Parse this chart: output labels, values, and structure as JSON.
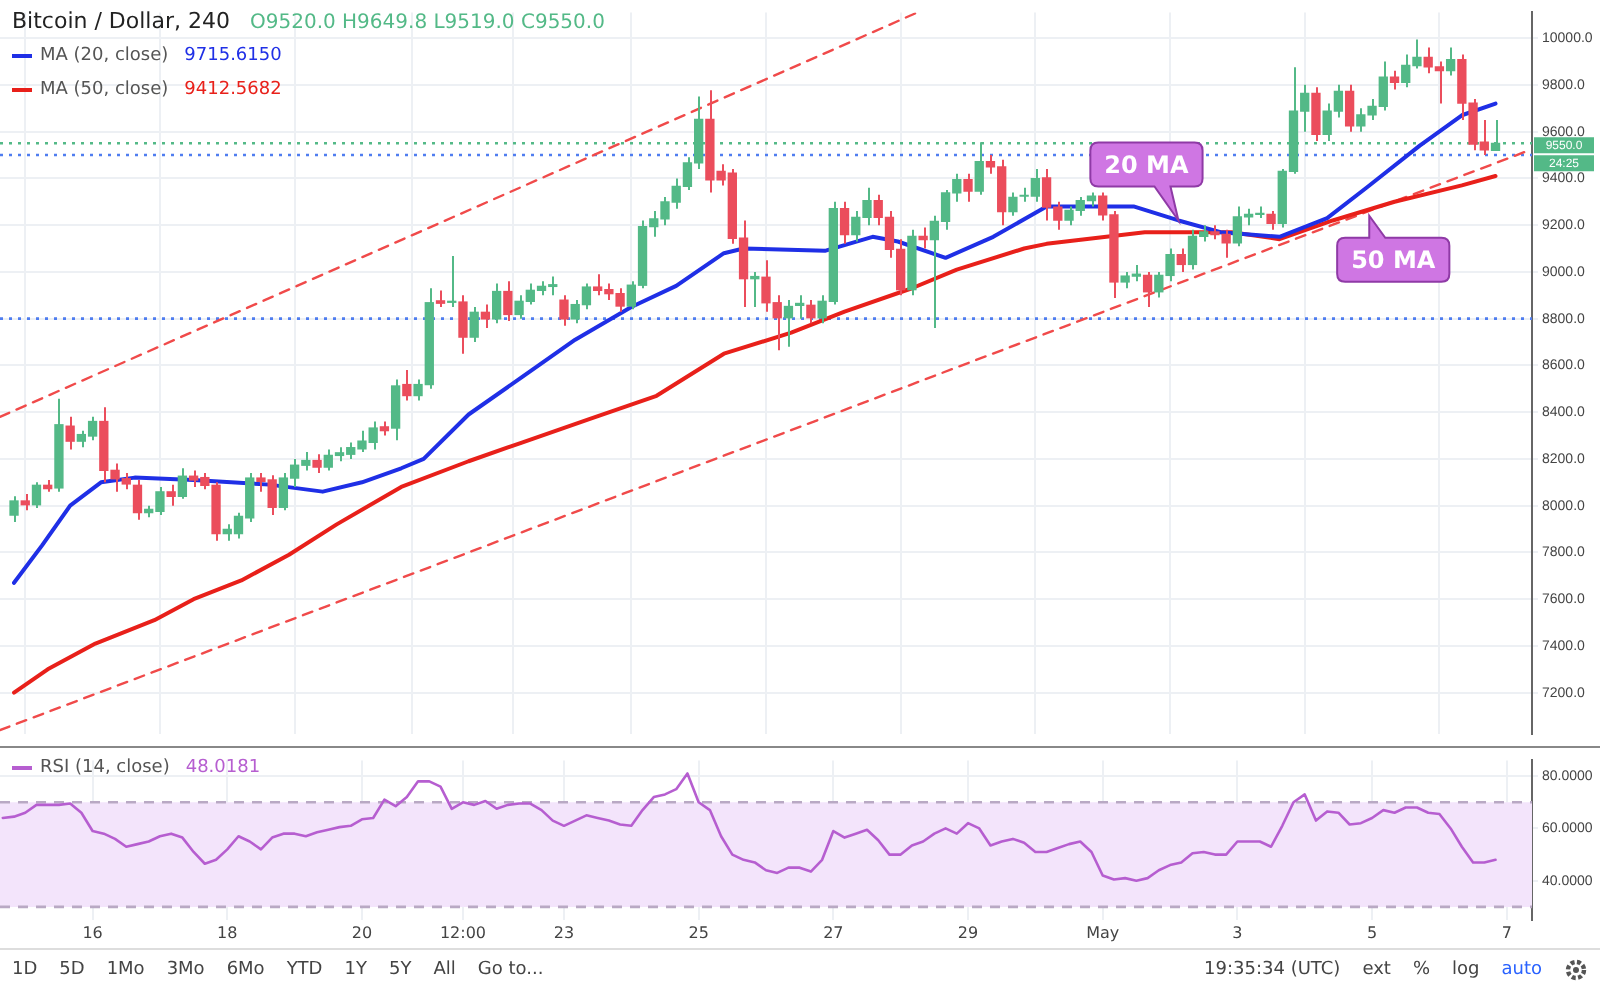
{
  "chart_data": [
    {
      "type": "candlestick",
      "title": "Bitcoin / Dollar, 240",
      "legend": "top left",
      "grid": true,
      "tick_labels": "y",
      "xlim": [
        "--04-14T15:00",
        "--05-07T09:00"
      ],
      "xticks": [
        {
          "value": "--04-16",
          "label": null
        },
        {
          "value": "--04-18",
          "label": null
        },
        {
          "value": "--04-20",
          "label": null
        },
        {
          "value": "--04-21T12:00",
          "label": null
        },
        {
          "value": "--04-23",
          "label": null
        },
        {
          "value": "--04-25",
          "label": null
        },
        {
          "value": "--04-27",
          "label": null
        },
        {
          "value": "--04-29",
          "label": null
        },
        {
          "value": "--05-01",
          "label": null
        },
        {
          "value": "--05-03",
          "label": null
        },
        {
          "value": "--05-05",
          "label": null
        },
        {
          "value": "--05-07",
          "label": null
        }
      ],
      "ylim": [
        7025,
        10110
      ],
      "yticks": [
        {
          "value": 7200,
          "label": "7200.0"
        },
        {
          "value": 7400,
          "label": "7400.0"
        },
        {
          "value": 7600,
          "label": "7600.0"
        },
        {
          "value": 7800,
          "label": "7800.0"
        },
        {
          "value": 8000,
          "label": "8000.0"
        },
        {
          "value": 8200,
          "label": "8200.0"
        },
        {
          "value": 8400,
          "label": "8400.0"
        },
        {
          "value": 8600,
          "label": "8600.0"
        },
        {
          "value": 8800,
          "label": "8800.0"
        },
        {
          "value": 9000,
          "label": "9000.0"
        },
        {
          "value": 9200,
          "label": "9200.0"
        },
        {
          "value": 9400,
          "label": "9400.0"
        },
        {
          "value": 9600,
          "label": "9600.0"
        },
        {
          "value": 9800,
          "label": "9800.0"
        },
        {
          "value": 10000,
          "label": "10000.0"
        }
      ],
      "x": [
        "--04-14T20:00",
        "--04-15T00:00",
        "--04-15T04:00",
        "--04-15T08:00",
        "--04-15T12:00",
        "--04-15T16:00",
        "--04-15T20:00",
        "--04-16T00:00",
        "--04-16T04:00",
        "--04-16T08:00",
        "--04-16T12:00",
        "--04-16T16:00",
        "--04-16T20:00",
        "--04-17T00:00",
        "--04-17T04:00",
        "--04-17T08:00",
        "--04-17T12:00",
        "--04-17T16:00",
        "--04-17T20:00",
        "--04-18T00:00",
        "--04-18T04:00",
        "--04-18T08:00",
        "--04-18T12:00",
        "--04-18T16:00",
        "--04-18T20:00",
        "--04-19T00:00",
        "--04-19T04:00",
        "--04-19T08:00",
        "--04-19T12:00",
        "--04-19T16:00",
        "--04-19T20:00",
        "--04-20T00:00",
        "--04-20T04:00",
        "--04-20T08:00",
        "--04-20T12:00",
        "--04-20T16:00",
        "--04-20T20:00",
        "--04-21T00:00",
        "--04-21T04:00",
        "--04-21T08:00",
        "--04-21T12:00",
        "--04-21T16:00",
        "--04-21T20:00",
        "--04-22T00:00",
        "--04-22T04:00",
        "--04-22T08:00",
        "--04-22T12:00",
        "--04-22T16:00",
        "--04-22T20:00",
        "--04-23T00:00",
        "--04-23T04:00",
        "--04-23T08:00",
        "--04-23T12:00",
        "--04-23T16:00",
        "--04-23T20:00",
        "--04-24T00:00",
        "--04-24T04:00",
        "--04-24T08:00",
        "--04-24T12:00",
        "--04-24T16:00",
        "--04-24T20:00",
        "--04-25T00:00",
        "--04-25T04:00",
        "--04-25T08:00",
        "--04-25T12:00",
        "--04-25T16:00",
        "--04-25T20:00",
        "--04-26T00:00",
        "--04-26T04:00",
        "--04-26T08:00",
        "--04-26T12:00",
        "--04-26T16:00",
        "--04-26T20:00",
        "--04-27T00:00",
        "--04-27T04:00",
        "--04-27T08:00",
        "--04-27T12:00",
        "--04-27T16:00",
        "--04-27T20:00",
        "--04-28T00:00",
        "--04-28T04:00",
        "--04-28T08:00",
        "--04-28T12:00",
        "--04-28T16:00",
        "--04-28T20:00",
        "--04-29T00:00",
        "--04-29T04:00",
        "--04-29T08:00",
        "--04-29T12:00",
        "--04-29T16:00",
        "--04-29T20:00",
        "--04-30T00:00",
        "--04-30T04:00",
        "--04-30T08:00",
        "--04-30T12:00",
        "--04-30T16:00",
        "--04-30T20:00",
        "--05-01T00:00",
        "--05-01T04:00",
        "--05-01T08:00",
        "--05-01T12:00",
        "--05-01T16:00",
        "--05-01T20:00",
        "--05-02T00:00",
        "--05-02T04:00",
        "--05-02T08:00",
        "--05-02T12:00",
        "--05-02T16:00",
        "--05-02T20:00",
        "--05-03T00:00",
        "--05-03T04:00",
        "--05-03T08:00",
        "--05-03T12:00",
        "--05-03T16:00",
        "--05-03T20:00",
        "--05-04T00:00",
        "--05-04T04:00",
        "--05-04T08:00",
        "--05-04T12:00",
        "--05-04T16:00",
        "--05-04T20:00",
        "--05-05T00:00",
        "--05-05T04:00",
        "--05-05T08:00",
        "--05-05T12:00",
        "--05-05T16:00",
        "--05-05T20:00",
        "--05-06T00:00",
        "--05-06T04:00",
        "--05-06T08:00",
        "--05-06T12:00",
        "--05-06T16:00",
        "--05-06T20:00"
      ],
      "ohlc": [
        [
          7960,
          8040,
          7930,
          8020
        ],
        [
          8020,
          8050,
          7980,
          8004
        ],
        [
          8004,
          8100,
          7990,
          8087
        ],
        [
          8087,
          8110,
          8060,
          8073
        ],
        [
          8076,
          8457,
          8060,
          8346
        ],
        [
          8340,
          8380,
          8240,
          8276
        ],
        [
          8276,
          8320,
          8250,
          8304
        ],
        [
          8298,
          8380,
          8280,
          8360
        ],
        [
          8360,
          8421,
          8100,
          8151
        ],
        [
          8151,
          8180,
          8060,
          8115
        ],
        [
          8115,
          8140,
          8070,
          8093
        ],
        [
          8087,
          8110,
          7940,
          7970
        ],
        [
          7970,
          8000,
          7950,
          7984
        ],
        [
          7976,
          8080,
          7960,
          8059
        ],
        [
          8059,
          8090,
          8000,
          8040
        ],
        [
          8040,
          8160,
          8030,
          8126
        ],
        [
          8126,
          8150,
          8080,
          8110
        ],
        [
          8120,
          8140,
          8070,
          8087
        ],
        [
          8087,
          8100,
          7850,
          7881
        ],
        [
          7881,
          7920,
          7850,
          7898
        ],
        [
          7881,
          7970,
          7860,
          7954
        ],
        [
          7948,
          8140,
          7930,
          8118
        ],
        [
          8118,
          8140,
          8060,
          8104
        ],
        [
          8110,
          8130,
          7960,
          7993
        ],
        [
          7993,
          8140,
          7980,
          8118
        ],
        [
          8118,
          8200,
          8080,
          8173
        ],
        [
          8173,
          8230,
          8150,
          8193
        ],
        [
          8193,
          8220,
          8140,
          8165
        ],
        [
          8165,
          8240,
          8150,
          8215
        ],
        [
          8215,
          8250,
          8190,
          8226
        ],
        [
          8220,
          8270,
          8200,
          8248
        ],
        [
          8243,
          8320,
          8230,
          8276
        ],
        [
          8271,
          8360,
          8240,
          8332
        ],
        [
          8337,
          8360,
          8300,
          8321
        ],
        [
          8332,
          8540,
          8280,
          8512
        ],
        [
          8518,
          8580,
          8450,
          8471
        ],
        [
          8471,
          8540,
          8450,
          8518
        ],
        [
          8518,
          8930,
          8500,
          8868
        ],
        [
          8876,
          8920,
          8850,
          8866
        ],
        [
          8870,
          9068,
          8850,
          8874
        ],
        [
          8871,
          8900,
          8650,
          8721
        ],
        [
          8721,
          8850,
          8700,
          8827
        ],
        [
          8827,
          8860,
          8760,
          8799
        ],
        [
          8799,
          8950,
          8780,
          8916
        ],
        [
          8916,
          8960,
          8790,
          8818
        ],
        [
          8818,
          8900,
          8800,
          8874
        ],
        [
          8874,
          8950,
          8860,
          8921
        ],
        [
          8921,
          8960,
          8900,
          8938
        ],
        [
          8938,
          8980,
          8900,
          8945
        ],
        [
          8879,
          8900,
          8770,
          8799
        ],
        [
          8799,
          8880,
          8780,
          8860
        ],
        [
          8860,
          8950,
          8840,
          8935
        ],
        [
          8935,
          8990,
          8900,
          8921
        ],
        [
          8924,
          8950,
          8880,
          8907
        ],
        [
          8907,
          8930,
          8830,
          8854
        ],
        [
          8854,
          8960,
          8840,
          8943
        ],
        [
          8943,
          9220,
          8930,
          9194
        ],
        [
          9194,
          9260,
          9150,
          9227
        ],
        [
          9227,
          9320,
          9200,
          9299
        ],
        [
          9299,
          9400,
          9270,
          9366
        ],
        [
          9366,
          9490,
          9350,
          9466
        ],
        [
          9466,
          9750,
          9440,
          9652
        ],
        [
          9652,
          9777,
          9340,
          9394
        ],
        [
          9430,
          9460,
          9370,
          9394
        ],
        [
          9422,
          9440,
          9120,
          9144
        ],
        [
          9144,
          9220,
          8850,
          8971
        ],
        [
          8971,
          9000,
          8850,
          8980
        ],
        [
          8977,
          9050,
          8830,
          8868
        ],
        [
          8868,
          8900,
          8665,
          8804
        ],
        [
          8804,
          8880,
          8680,
          8852
        ],
        [
          8857,
          8900,
          8800,
          8865
        ],
        [
          8857,
          8880,
          8780,
          8804
        ],
        [
          8804,
          8900,
          8780,
          8874
        ],
        [
          8874,
          9300,
          8860,
          9271
        ],
        [
          9271,
          9300,
          9120,
          9160
        ],
        [
          9160,
          9260,
          9130,
          9233
        ],
        [
          9233,
          9360,
          9200,
          9305
        ],
        [
          9305,
          9330,
          9200,
          9233
        ],
        [
          9233,
          9260,
          9060,
          9096
        ],
        [
          9096,
          9140,
          8900,
          8924
        ],
        [
          8924,
          9180,
          8900,
          9152
        ],
        [
          9152,
          9190,
          9100,
          9138
        ],
        [
          9138,
          9240,
          8760,
          9216
        ],
        [
          9216,
          9350,
          9180,
          9338
        ],
        [
          9338,
          9420,
          9300,
          9394
        ],
        [
          9394,
          9420,
          9300,
          9346
        ],
        [
          9346,
          9555,
          9330,
          9472
        ],
        [
          9472,
          9500,
          9420,
          9449
        ],
        [
          9449,
          9480,
          9200,
          9258
        ],
        [
          9258,
          9340,
          9240,
          9319
        ],
        [
          9324,
          9360,
          9300,
          9327
        ],
        [
          9324,
          9440,
          9300,
          9399
        ],
        [
          9402,
          9440,
          9220,
          9277
        ],
        [
          9277,
          9300,
          9180,
          9222
        ],
        [
          9222,
          9280,
          9200,
          9263
        ],
        [
          9263,
          9320,
          9240,
          9305
        ],
        [
          9305,
          9340,
          9280,
          9324
        ],
        [
          9324,
          9340,
          9220,
          9244
        ],
        [
          9244,
          9260,
          8888,
          8957
        ],
        [
          8957,
          9000,
          8930,
          8982
        ],
        [
          8982,
          9030,
          8960,
          8990
        ],
        [
          8985,
          9000,
          8850,
          8915
        ],
        [
          8915,
          9000,
          8890,
          8985
        ],
        [
          8985,
          9100,
          8960,
          9074
        ],
        [
          9074,
          9100,
          9000,
          9032
        ],
        [
          9032,
          9180,
          9010,
          9152
        ],
        [
          9152,
          9200,
          9130,
          9171
        ],
        [
          9171,
          9200,
          9140,
          9160
        ],
        [
          9160,
          9180,
          9060,
          9124
        ],
        [
          9124,
          9280,
          9110,
          9235
        ],
        [
          9235,
          9270,
          9200,
          9246
        ],
        [
          9246,
          9280,
          9230,
          9250
        ],
        [
          9246,
          9260,
          9180,
          9208
        ],
        [
          9208,
          9440,
          9190,
          9430
        ],
        [
          9430,
          9875,
          9420,
          9688
        ],
        [
          9688,
          9800,
          9600,
          9763
        ],
        [
          9763,
          9790,
          9560,
          9588
        ],
        [
          9588,
          9720,
          9560,
          9688
        ],
        [
          9688,
          9800,
          9660,
          9772
        ],
        [
          9772,
          9800,
          9600,
          9625
        ],
        [
          9625,
          9700,
          9600,
          9672
        ],
        [
          9672,
          9740,
          9650,
          9708
        ],
        [
          9708,
          9900,
          9690,
          9833
        ],
        [
          9833,
          9860,
          9780,
          9811
        ],
        [
          9811,
          9930,
          9790,
          9883
        ],
        [
          9883,
          9994,
          9870,
          9917
        ],
        [
          9917,
          9960,
          9850,
          9877
        ],
        [
          9877,
          9900,
          9720,
          9861
        ],
        [
          9861,
          9960,
          9840,
          9908
        ],
        [
          9908,
          9930,
          9650,
          9722
        ],
        [
          9722,
          9740,
          9520,
          9547
        ],
        [
          9555,
          9650,
          9500,
          9522
        ],
        [
          9520,
          9649.8,
          9519,
          9550
        ]
      ],
      "series": [
        {
          "name": "MA (20, close)",
          "type": "line",
          "color": "#1f2fe6",
          "x": [
            "--04-14T20:00",
            "--04-15T06:00",
            "--04-15T16:00",
            "--04-16T03:00",
            "--04-16T15:00",
            "--04-17T12:00",
            "--04-18T15:00",
            "--04-19T10:00",
            "--04-20T00:00",
            "--04-20T14:00",
            "--04-20T22:00",
            "--04-21T14:00",
            "--04-22T09:00",
            "--04-23T04:00",
            "--04-24T00:00",
            "--04-24T16:00",
            "--04-25T09:00",
            "--04-25T16:00",
            "--04-26T21:00",
            "--04-27T14:00",
            "--04-27T23:00",
            "--04-28T16:00",
            "--04-29T09:00",
            "--04-30T04:00",
            "--05-01T11:00",
            "--05-02T03:00",
            "--05-02T18:00",
            "--05-03T15:00",
            "--05-04T08:00",
            "--05-04T22:00",
            "--05-05T17:00",
            "--05-06T08:00",
            "--05-06T20:00"
          ],
          "values": [
            7670,
            7830,
            8000,
            8100,
            8120,
            8110,
            8090,
            8060,
            8100,
            8160,
            8200,
            8390,
            8550,
            8710,
            8850,
            8940,
            9080,
            9100,
            9090,
            9150,
            9130,
            9060,
            9150,
            9280,
            9280,
            9220,
            9170,
            9150,
            9230,
            9360,
            9540,
            9670,
            9720
          ]
        },
        {
          "name": "MA (50, close)",
          "type": "line",
          "color": "#e8201a",
          "x": [
            "--04-14T20:00",
            "--04-15T08:00",
            "--04-16T01:00",
            "--04-16T22:00",
            "--04-17T12:00",
            "--04-18T05:00",
            "--04-18T22:00",
            "--04-19T15:00",
            "--04-20T14:00",
            "--04-21T14:00",
            "--04-22T09:00",
            "--04-23T09:00",
            "--04-24T09:00",
            "--04-25T09:00",
            "--04-26T09:00",
            "--04-27T04:00",
            "--04-28T04:00",
            "--04-28T20:00",
            "--04-29T20:00",
            "--04-30T04:00",
            "--05-01T15:00",
            "--05-02T22:00",
            "--05-03T15:00",
            "--05-04T10:00",
            "--05-05T08:00",
            "--05-06T08:00",
            "--05-06T20:00"
          ],
          "values": [
            7200,
            7300,
            7410,
            7510,
            7600,
            7680,
            7790,
            7920,
            8080,
            8190,
            8270,
            8370,
            8470,
            8650,
            8740,
            8830,
            8930,
            9010,
            9100,
            9120,
            9170,
            9170,
            9140,
            9220,
            9300,
            9370,
            9410
          ]
        },
        {
          "type": "line",
          "color": "#f04a4a",
          "line_style": "dashed",
          "x": [
            "--04-14T15:00",
            "--04-28T06:00"
          ],
          "values": [
            8380,
            10110
          ]
        },
        {
          "type": "line",
          "color": "#f04a4a",
          "line_style": "dashed",
          "x": [
            "--04-14T15:00",
            "--05-07T08:00"
          ],
          "values": [
            7040,
            9520
          ]
        }
      ],
      "ref_lines": [
        {
          "axis": "y",
          "value": 9500,
          "color": "#4f7df0",
          "line_style": "dotted"
        },
        {
          "axis": "y",
          "value": 8800,
          "color": "#4f7df0",
          "line_style": "dotted"
        },
        {
          "axis": "y",
          "value": 9550,
          "label": "9550.0",
          "color": "#53b987",
          "line_style": "dotted"
        }
      ],
      "annotations": [
        "O9520.0 H9649.8 L9519.0 C9550.0",
        "9715.6150",
        "9412.5682",
        "24:25",
        {
          "text": "20 MA",
          "x": "--05-02T03:00",
          "y": 9220
        },
        {
          "text": "50 MA",
          "x": "--05-04T23:00",
          "y": 9240
        }
      ]
    },
    {
      "type": "line",
      "legend": "top left",
      "grid": true,
      "xlim": [
        "--04-14T15:00",
        "--05-07T09:00"
      ],
      "xticks": [
        {
          "value": "--04-16",
          "label": "16"
        },
        {
          "value": "--04-18",
          "label": "18"
        },
        {
          "value": "--04-20",
          "label": "20"
        },
        {
          "value": "--04-21T12:00",
          "label": "12:00"
        },
        {
          "value": "--04-23",
          "label": "23"
        },
        {
          "value": "--04-25",
          "label": "25"
        },
        {
          "value": "--04-27",
          "label": "27"
        },
        {
          "value": "--04-29",
          "label": "29"
        },
        {
          "value": "--05-01",
          "label": "May"
        },
        {
          "value": "--05-03",
          "label": "3"
        },
        {
          "value": "--05-05",
          "label": "5"
        },
        {
          "value": "--05-07",
          "label": "7"
        }
      ],
      "ylim": [
        25,
        86
      ],
      "yticks": [
        {
          "value": 40,
          "label": "40.0000"
        },
        {
          "value": 60,
          "label": "60.0000"
        },
        {
          "value": 80,
          "label": "80.0000"
        }
      ],
      "bands": [
        {
          "axis": "y",
          "from": 30,
          "to": 70,
          "color": "#f3e4fb"
        }
      ],
      "ref_lines": [
        {
          "axis": "y",
          "value": 30,
          "color": "#b9a9c4",
          "line_style": "dashed"
        },
        {
          "axis": "y",
          "value": 70,
          "color": "#b9a9c4",
          "line_style": "dashed"
        }
      ],
      "series": [
        {
          "name": "RSI (14, close)",
          "color": "#b65ed0",
          "x": [
            "--04-14T16:00",
            "--04-14T20:00",
            "--04-15T00:00",
            "--04-15T04:00",
            "--04-15T08:00",
            "--04-15T12:00",
            "--04-15T16:00",
            "--04-15T20:00",
            "--04-16T00:00",
            "--04-16T04:00",
            "--04-16T08:00",
            "--04-16T12:00",
            "--04-16T16:00",
            "--04-16T20:00",
            "--04-17T00:00",
            "--04-17T04:00",
            "--04-17T08:00",
            "--04-17T12:00",
            "--04-17T16:00",
            "--04-17T20:00",
            "--04-18T00:00",
            "--04-18T04:00",
            "--04-18T08:00",
            "--04-18T12:00",
            "--04-18T16:00",
            "--04-18T20:00",
            "--04-19T00:00",
            "--04-19T04:00",
            "--04-19T08:00",
            "--04-19T12:00",
            "--04-19T16:00",
            "--04-19T20:00",
            "--04-20T00:00",
            "--04-20T04:00",
            "--04-20T08:00",
            "--04-20T12:00",
            "--04-20T16:00",
            "--04-20T20:00",
            "--04-21T00:00",
            "--04-21T04:00",
            "--04-21T08:00",
            "--04-21T12:00",
            "--04-21T16:00",
            "--04-21T20:00",
            "--04-22T00:00",
            "--04-22T04:00",
            "--04-22T08:00",
            "--04-22T12:00",
            "--04-22T16:00",
            "--04-22T20:00",
            "--04-23T00:00",
            "--04-23T04:00",
            "--04-23T08:00",
            "--04-23T12:00",
            "--04-23T16:00",
            "--04-23T20:00",
            "--04-24T00:00",
            "--04-24T04:00",
            "--04-24T08:00",
            "--04-24T12:00",
            "--04-24T16:00",
            "--04-24T20:00",
            "--04-25T00:00",
            "--04-25T04:00",
            "--04-25T08:00",
            "--04-25T12:00",
            "--04-25T16:00",
            "--04-25T20:00",
            "--04-26T00:00",
            "--04-26T04:00",
            "--04-26T08:00",
            "--04-26T12:00",
            "--04-26T16:00",
            "--04-26T20:00",
            "--04-27T00:00",
            "--04-27T04:00",
            "--04-27T08:00",
            "--04-27T12:00",
            "--04-27T16:00",
            "--04-27T20:00",
            "--04-28T00:00",
            "--04-28T04:00",
            "--04-28T08:00",
            "--04-28T12:00",
            "--04-28T16:00",
            "--04-28T20:00",
            "--04-29T00:00",
            "--04-29T04:00",
            "--04-29T08:00",
            "--04-29T12:00",
            "--04-29T16:00",
            "--04-29T20:00",
            "--04-30T00:00",
            "--04-30T04:00",
            "--04-30T08:00",
            "--04-30T12:00",
            "--04-30T16:00",
            "--04-30T20:00",
            "--05-01T00:00",
            "--05-01T04:00",
            "--05-01T08:00",
            "--05-01T12:00",
            "--05-01T16:00",
            "--05-01T20:00",
            "--05-02T00:00",
            "--05-02T04:00",
            "--05-02T08:00",
            "--05-02T12:00",
            "--05-02T16:00",
            "--05-02T20:00",
            "--05-03T00:00",
            "--05-03T04:00",
            "--05-03T08:00",
            "--05-03T12:00",
            "--05-03T16:00",
            "--05-03T20:00",
            "--05-04T00:00",
            "--05-04T04:00",
            "--05-04T08:00",
            "--05-04T12:00",
            "--05-04T16:00",
            "--05-04T20:00",
            "--05-05T00:00",
            "--05-05T04:00",
            "--05-05T08:00",
            "--05-05T12:00",
            "--05-05T16:00",
            "--05-05T20:00",
            "--05-06T00:00",
            "--05-06T04:00",
            "--05-06T08:00",
            "--05-06T12:00",
            "--05-06T16:00",
            "--05-06T20:00"
          ],
          "values": [
            64,
            64.5,
            66,
            69,
            69,
            69,
            69.5,
            66,
            59,
            58,
            56,
            53,
            54,
            55,
            57,
            58,
            56.5,
            51,
            46.5,
            48,
            52,
            57,
            55,
            52,
            56.5,
            58,
            58,
            57,
            58.5,
            59.5,
            60.5,
            61,
            63.5,
            64,
            71,
            68.5,
            72,
            78,
            78,
            76,
            67.5,
            70,
            69,
            70.5,
            67.5,
            69,
            69.5,
            69.5,
            67,
            63,
            61,
            63,
            65,
            64,
            63,
            61.5,
            61,
            67,
            72,
            73,
            75,
            81,
            70,
            67,
            57,
            50,
            48,
            47,
            44,
            43,
            45,
            45,
            43.5,
            48,
            59,
            56.5,
            58,
            59.5,
            55.5,
            50,
            50,
            53.5,
            55,
            58,
            60,
            58,
            62,
            60,
            53.5,
            55,
            56,
            54.5,
            51,
            51,
            52.5,
            54,
            55,
            51,
            42,
            40.5,
            41,
            40,
            41,
            44,
            46,
            47,
            50.5,
            51,
            50,
            50,
            55,
            55,
            55,
            53,
            61,
            70,
            73,
            63,
            66.5,
            66,
            61.5,
            62,
            64,
            67,
            66,
            68,
            68,
            66,
            65.5,
            60,
            53,
            47,
            47,
            48
          ]
        }
      ],
      "annotations": [
        "48.0181",
        "1D",
        "5D",
        "1Mo",
        "3Mo",
        "6Mo",
        "YTD",
        "1Y",
        "5Y",
        "All",
        "Go to...",
        "19:35:34 (UTC)",
        "ext",
        "%",
        "log",
        "auto"
      ]
    }
  ]
}
